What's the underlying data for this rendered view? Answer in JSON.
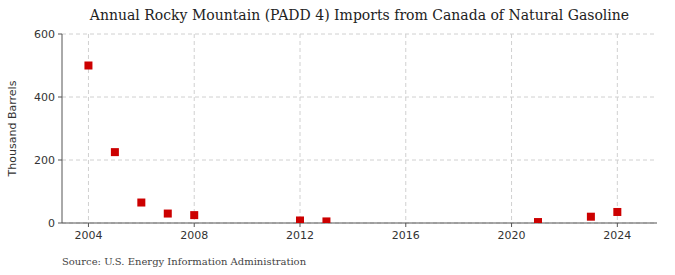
{
  "chart_data": {
    "type": "scatter",
    "title": "Annual Rocky Mountain (PADD 4) Imports from Canada of Natural Gasoline",
    "y_label": "Thousand Barrels",
    "annotations": [
      "Source: U.S. Energy Information Administration"
    ],
    "x": [
      2004,
      2005,
      2006,
      2007,
      2008,
      2012,
      2013,
      2021,
      2023,
      2024
    ],
    "values": [
      500,
      225,
      65,
      30,
      25,
      8,
      5,
      3,
      20,
      35
    ],
    "color": "#cc0000",
    "marker": "square",
    "xlim": [
      2003.0,
      2025.5
    ],
    "ylim": [
      0,
      600
    ],
    "xticks": [
      2004,
      2008,
      2012,
      2016,
      2020,
      2024
    ],
    "yticks": [
      0,
      200,
      400,
      600
    ],
    "grid": true
  }
}
